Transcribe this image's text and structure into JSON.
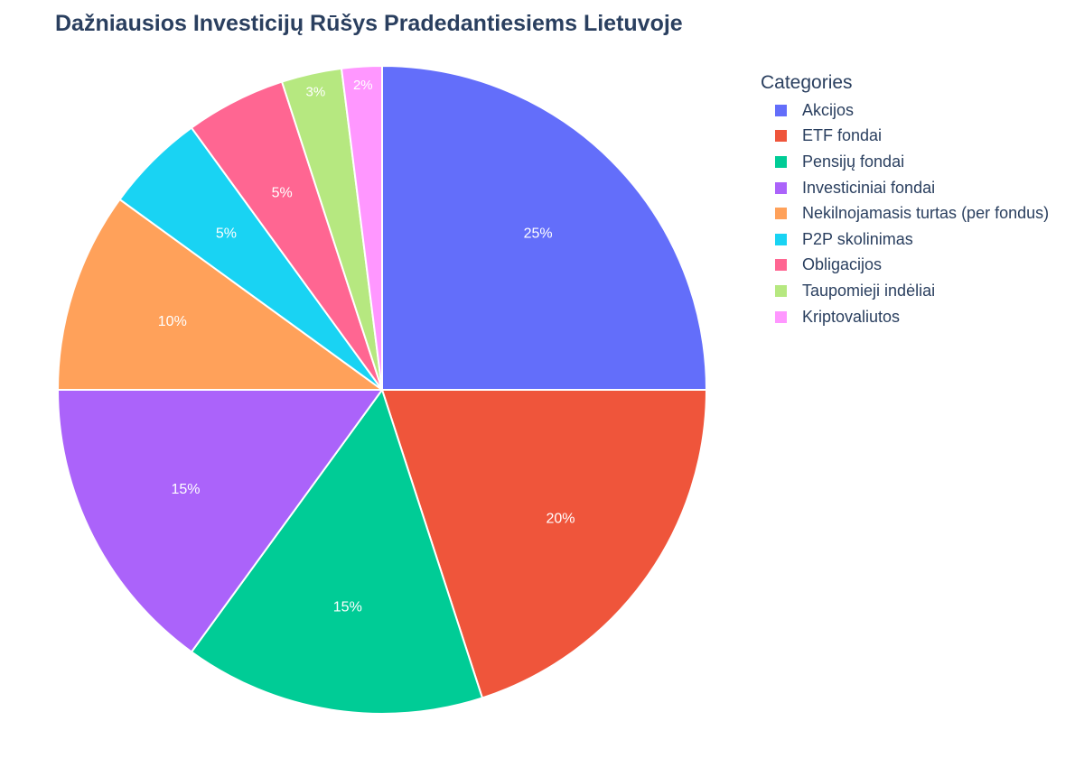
{
  "chart_data": {
    "type": "pie",
    "title": "Dažniausios Investicijų Rūšys Pradedantiesiems Lietuvoje",
    "legend_title": "Categories",
    "legend_position": "right",
    "slices": [
      {
        "label": "Akcijos",
        "value": 25,
        "text": "25%",
        "color": "#636efa"
      },
      {
        "label": "ETF fondai",
        "value": 20,
        "text": "20%",
        "color": "#ef553b"
      },
      {
        "label": "Pensijų fondai",
        "value": 15,
        "text": "15%",
        "color": "#00cc96"
      },
      {
        "label": "Investiciniai fondai",
        "value": 15,
        "text": "15%",
        "color": "#ab63fa"
      },
      {
        "label": "Nekilnojamasis turtas (per fondus)",
        "value": 10,
        "text": "10%",
        "color": "#ffa15a"
      },
      {
        "label": "P2P skolinimas",
        "value": 5,
        "text": "5%",
        "color": "#19d3f3"
      },
      {
        "label": "Obligacijos",
        "value": 5,
        "text": "5%",
        "color": "#ff6692"
      },
      {
        "label": "Taupomieji indėliai",
        "value": 3,
        "text": "3%",
        "color": "#b6e880"
      },
      {
        "label": "Kriptovaliutos",
        "value": 2,
        "text": "2%",
        "color": "#ff97ff"
      }
    ]
  }
}
